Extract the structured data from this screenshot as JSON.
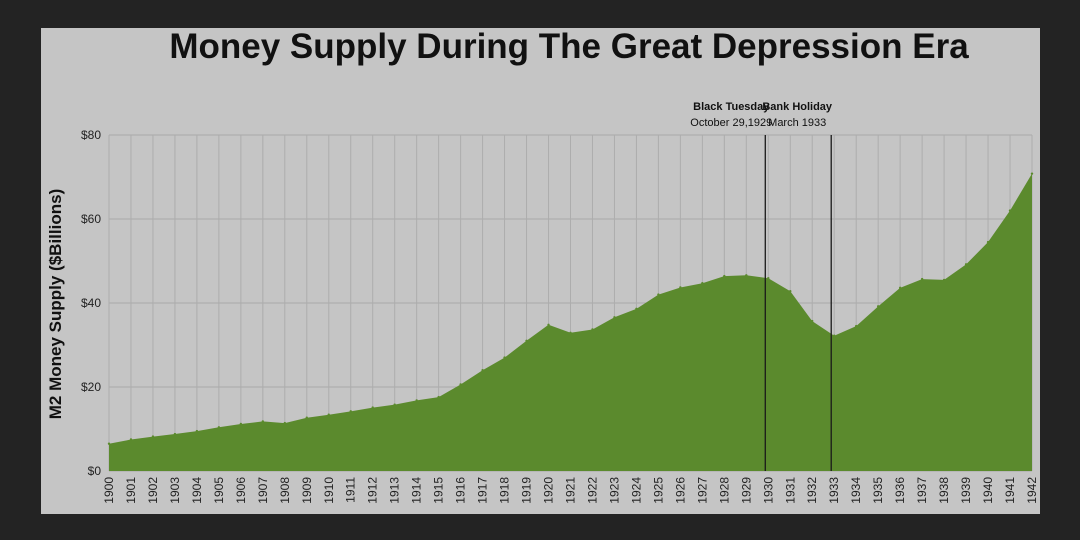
{
  "chart_data": {
    "type": "area",
    "title": "Money Supply During The Great Depression Era",
    "xlabel": "",
    "ylabel": "M2 Money Supply ($Billions)",
    "x": [
      "1900",
      "1901",
      "1902",
      "1903",
      "1904",
      "1905",
      "1906",
      "1907",
      "1908",
      "1909",
      "1910",
      "1911",
      "1912",
      "1913",
      "1914",
      "1915",
      "1916",
      "1917",
      "1918",
      "1919",
      "1920",
      "1921",
      "1922",
      "1923",
      "1924",
      "1925",
      "1926",
      "1927",
      "1928",
      "1929",
      "1930",
      "1931",
      "1932",
      "1933",
      "1934",
      "1935",
      "1936",
      "1937",
      "1938",
      "1939",
      "1940",
      "1941",
      "1942"
    ],
    "values": [
      6.5,
      7.5,
      8.2,
      8.8,
      9.5,
      10.4,
      11.2,
      11.8,
      11.4,
      12.7,
      13.4,
      14.2,
      15.1,
      15.8,
      16.8,
      17.6,
      20.6,
      24.0,
      27.0,
      31.0,
      34.8,
      32.9,
      33.7,
      36.6,
      38.6,
      42.0,
      43.7,
      44.7,
      46.4,
      46.6,
      45.9,
      42.8,
      35.7,
      32.2,
      34.5,
      39.2,
      43.6,
      45.7,
      45.5,
      49.2,
      54.5,
      62.0,
      70.8
    ],
    "ylim": [
      0,
      80
    ],
    "yticks": [
      0,
      20,
      40,
      60,
      80
    ],
    "ytick_labels": [
      "$0",
      "$20",
      "$40",
      "$60",
      "$80"
    ],
    "grid": true,
    "fill_color": "#5b8a2d",
    "annotations": [
      {
        "x": "1930",
        "label": "Black Tuesday",
        "sublabel": "October 29,1929"
      },
      {
        "x": "1933",
        "label": "Bank Holiday",
        "sublabel": "March 1933"
      }
    ]
  }
}
